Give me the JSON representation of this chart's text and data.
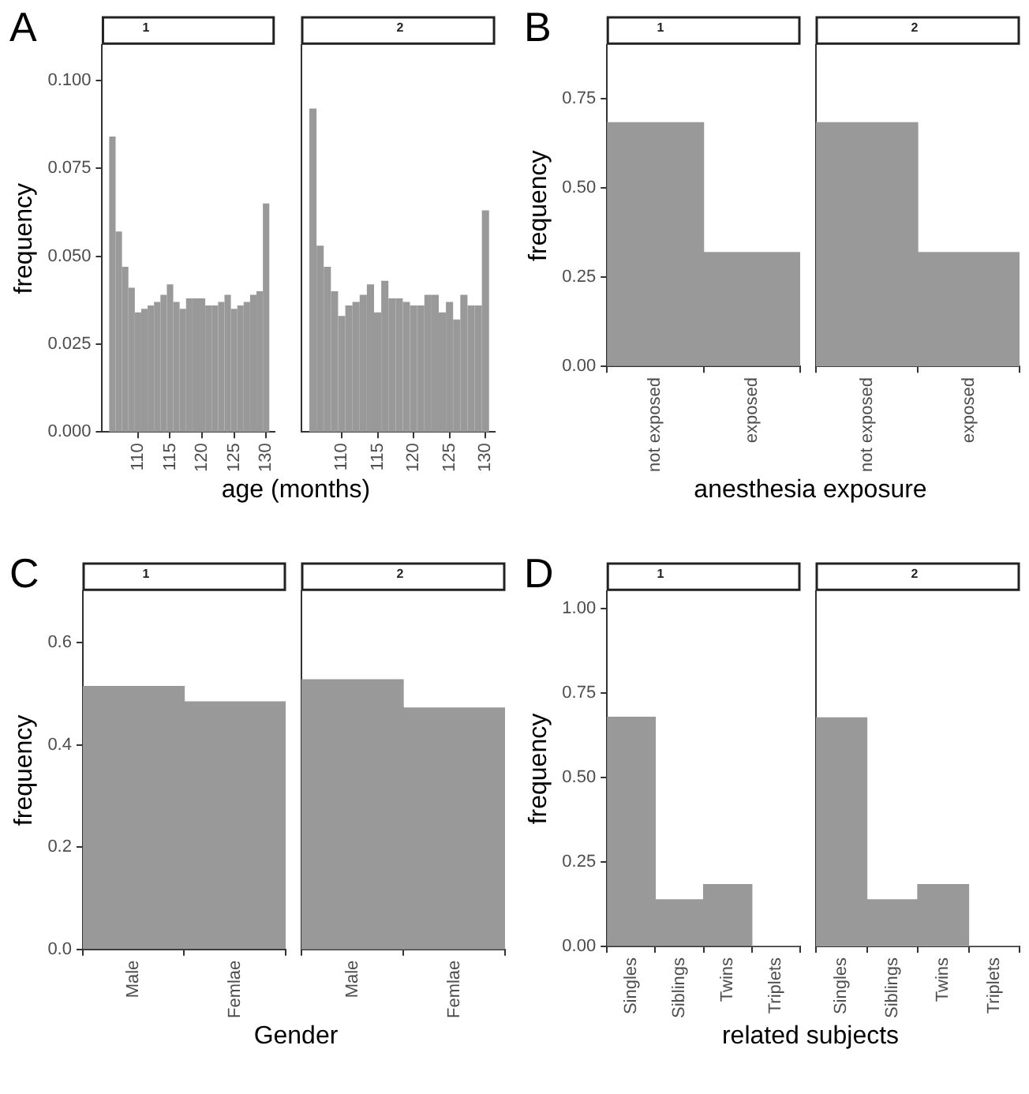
{
  "chart_data": [
    {
      "type": "histogram",
      "title": "1",
      "xlabel": "age (months)",
      "ylabel": "frequency",
      "annotations": [
        "A"
      ],
      "color": "#999999",
      "grid": false,
      "bins": [
        105.5,
        106.5,
        107.5,
        108.5,
        109.5,
        110.5,
        111.5,
        112.5,
        113.5,
        114.5,
        115.5,
        116.5,
        117.5,
        118.5,
        119.5,
        120.5,
        121.5,
        122.5,
        123.5,
        124.5,
        125.5,
        126.5,
        127.5,
        128.5,
        129.5,
        130.5
      ],
      "values": [
        0.084,
        0.057,
        0.047,
        0.041,
        0.034,
        0.035,
        0.036,
        0.037,
        0.039,
        0.042,
        0.037,
        0.035,
        0.038,
        0.038,
        0.038,
        0.036,
        0.036,
        0.037,
        0.039,
        0.035,
        0.036,
        0.037,
        0.039,
        0.04,
        0.065
      ],
      "xlim": [
        104.4,
        131.3
      ],
      "xticks": [
        110,
        115,
        120,
        125,
        130
      ],
      "ylim": [
        0,
        0.11
      ],
      "yticks": [
        {
          "value": 0,
          "label": "0.000"
        },
        {
          "value": 0.025,
          "label": "0.025"
        },
        {
          "value": 0.05,
          "label": "0.050"
        },
        {
          "value": 0.075,
          "label": "0.075"
        },
        {
          "value": 0.1,
          "label": "0.100"
        }
      ]
    },
    {
      "type": "histogram",
      "title": "2",
      "color": "#999999",
      "grid": false,
      "tick_labels": "x",
      "bins": [
        105.5,
        106.5,
        107.5,
        108.5,
        109.5,
        110.5,
        111.5,
        112.5,
        113.5,
        114.5,
        115.5,
        116.5,
        117.5,
        118.5,
        119.5,
        120.5,
        121.5,
        122.5,
        123.5,
        124.5,
        125.5,
        126.5,
        127.5,
        128.5,
        129.5,
        130.5
      ],
      "values": [
        0.092,
        0.053,
        0.047,
        0.04,
        0.033,
        0.036,
        0.037,
        0.039,
        0.042,
        0.034,
        0.043,
        0.038,
        0.038,
        0.037,
        0.036,
        0.036,
        0.039,
        0.039,
        0.034,
        0.037,
        0.032,
        0.039,
        0.036,
        0.036,
        0.063
      ],
      "xlim": [
        104.4,
        131.3
      ],
      "xticks": [
        110,
        115,
        120,
        125,
        130
      ],
      "ylim": [
        0,
        0.11
      ]
    },
    {
      "type": "bar",
      "title": "1",
      "xlabel": "anesthesia exposure",
      "ylabel": "frequency",
      "annotations": [
        "B"
      ],
      "color": "#999999",
      "grid": false,
      "categories": [
        "not exposed",
        "exposed"
      ],
      "values": [
        0.683,
        0.319
      ],
      "ylim": [
        0,
        0.9
      ],
      "yticks": [
        {
          "value": 0,
          "label": "0.00"
        },
        {
          "value": 0.25,
          "label": "0.25"
        },
        {
          "value": 0.5,
          "label": "0.50"
        },
        {
          "value": 0.75,
          "label": "0.75"
        }
      ]
    },
    {
      "type": "bar",
      "title": "2",
      "color": "#999999",
      "grid": false,
      "tick_labels": "x",
      "categories": [
        "not exposed",
        "exposed"
      ],
      "values": [
        0.683,
        0.319
      ],
      "ylim": [
        0,
        0.9
      ]
    },
    {
      "type": "bar",
      "title": "1",
      "xlabel": "Gender",
      "ylabel": "frequency",
      "annotations": [
        "C"
      ],
      "color": "#999999",
      "grid": false,
      "categories": [
        "Male",
        "Femlae"
      ],
      "values": [
        0.514,
        0.484
      ],
      "ylim": [
        0,
        0.7
      ],
      "yticks": [
        {
          "value": 0,
          "label": "0.0"
        },
        {
          "value": 0.2,
          "label": "0.2"
        },
        {
          "value": 0.4,
          "label": "0.4"
        },
        {
          "value": 0.6,
          "label": "0.6"
        }
      ]
    },
    {
      "type": "bar",
      "title": "2",
      "color": "#999999",
      "grid": false,
      "tick_labels": "x",
      "categories": [
        "Male",
        "Femlae"
      ],
      "values": [
        0.527,
        0.472
      ],
      "ylim": [
        0,
        0.7
      ]
    },
    {
      "type": "bar",
      "title": "1",
      "xlabel": "related subjects",
      "ylabel": "frequency",
      "annotations": [
        "D"
      ],
      "color": "#999999",
      "grid": false,
      "categories": [
        "Singles",
        "Siblings",
        "Twins",
        "Triplets"
      ],
      "values": [
        0.678,
        0.138,
        0.183,
        0
      ],
      "ylim": [
        0,
        1.05
      ],
      "yticks": [
        {
          "value": 0,
          "label": "0.00"
        },
        {
          "value": 0.25,
          "label": "0.25"
        },
        {
          "value": 0.5,
          "label": "0.50"
        },
        {
          "value": 0.75,
          "label": "0.75"
        },
        {
          "value": 1,
          "label": "1.00"
        }
      ]
    },
    {
      "type": "bar",
      "title": "2",
      "color": "#999999",
      "grid": false,
      "tick_labels": "x",
      "categories": [
        "Singles",
        "Siblings",
        "Twins",
        "Triplets"
      ],
      "values": [
        0.676,
        0.138,
        0.183,
        0
      ],
      "ylim": [
        0,
        1.05
      ]
    }
  ]
}
